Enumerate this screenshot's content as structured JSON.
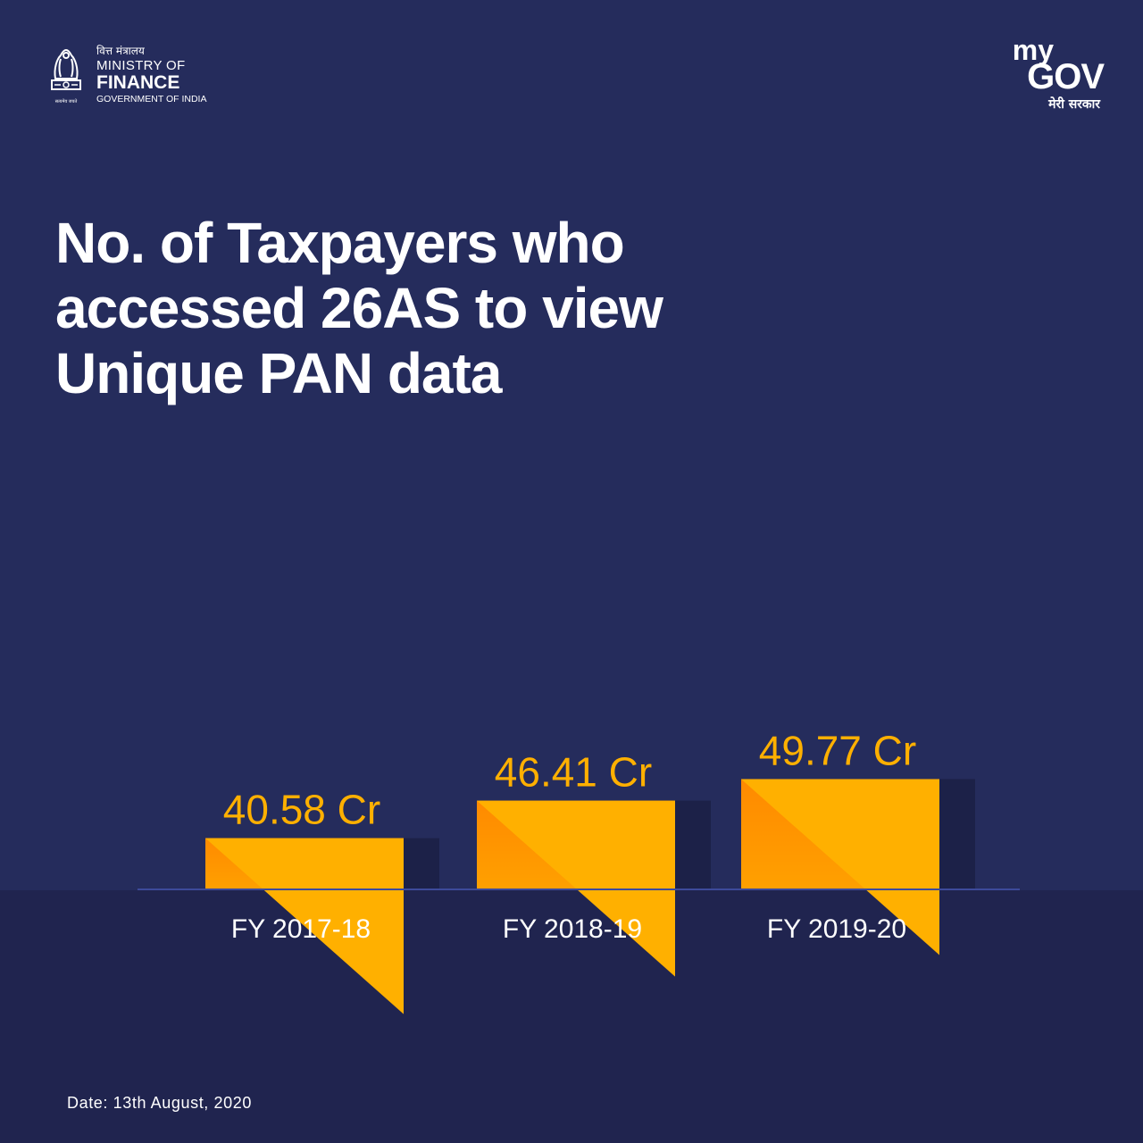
{
  "branding": {
    "ministry_hindi": "वित्त मंत्रालय",
    "ministry_line1": "MINISTRY OF",
    "ministry_line2": "FINANCE",
    "ministry_line3": "GOVERNMENT OF INDIA",
    "emblem_caption": "सत्यमेव जयते",
    "mygov_my": "my",
    "mygov_gov": "GOV",
    "mygov_hindi": "मेरी सरकार"
  },
  "colors": {
    "background": "#252c5c",
    "lower_band": "#20244f",
    "bar_light": "#ffb000",
    "bar_dark": "#ff8a00",
    "bar_shadow": "#1c2148",
    "value_label": "#ffb000",
    "axis_line": "#3d4a9a"
  },
  "chart_data": {
    "type": "bar",
    "title": "No. of Taxpayers who accessed 26AS to view Unique PAN data",
    "categories": [
      "FY 2017-18",
      "FY 2018-19",
      "FY 2019-20"
    ],
    "values": [
      40.58,
      46.41,
      49.77
    ],
    "value_labels": [
      "40.58 Cr",
      "46.41 Cr",
      "49.77 Cr"
    ],
    "unit": "Cr",
    "xlabel": "",
    "ylabel": "",
    "grid": false,
    "legend": "none"
  },
  "footer": {
    "date": "Date: 13th August, 2020"
  }
}
